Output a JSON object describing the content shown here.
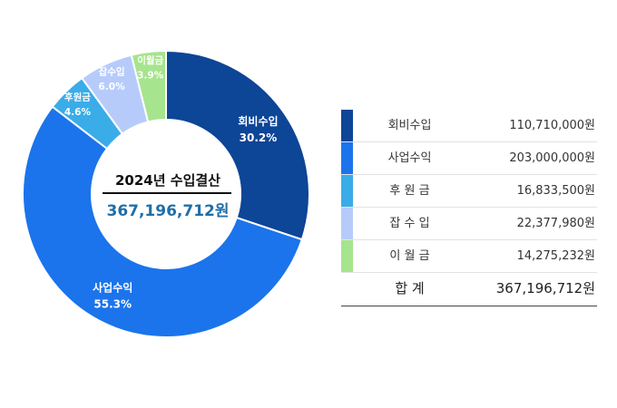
{
  "chart_data": {
    "type": "pie",
    "title": "2024년 수입결산",
    "total": "367,196,712원",
    "slices": [
      {
        "name": "회비수입",
        "label_pct": "30.2%",
        "value": 110710000,
        "value_text": "110,710,000원",
        "color": "#0d4597",
        "legend_name": "회비수입"
      },
      {
        "name": "사업수익",
        "label_pct": "55.3%",
        "value": 203000000,
        "value_text": "203,000,000원",
        "color": "#1b74ec",
        "legend_name": "사업수익"
      },
      {
        "name": "후원금",
        "label_pct": "4.6%",
        "value": 16833500,
        "value_text": "16,833,500원",
        "color": "#3aace8",
        "legend_name": "후 원 금"
      },
      {
        "name": "잡수입",
        "label_pct": "6.0%",
        "value": 22377980,
        "value_text": "22,377,980원",
        "color": "#b7cbfb",
        "legend_name": "잡 수 입"
      },
      {
        "name": "이월금",
        "label_pct": "3.9%",
        "value": 14275232,
        "value_text": "14,275,232원",
        "color": "#a6e48d",
        "legend_name": "이 월 금"
      }
    ],
    "legend": {
      "total_label": "합    계",
      "total_value": "367,196,712원"
    }
  }
}
